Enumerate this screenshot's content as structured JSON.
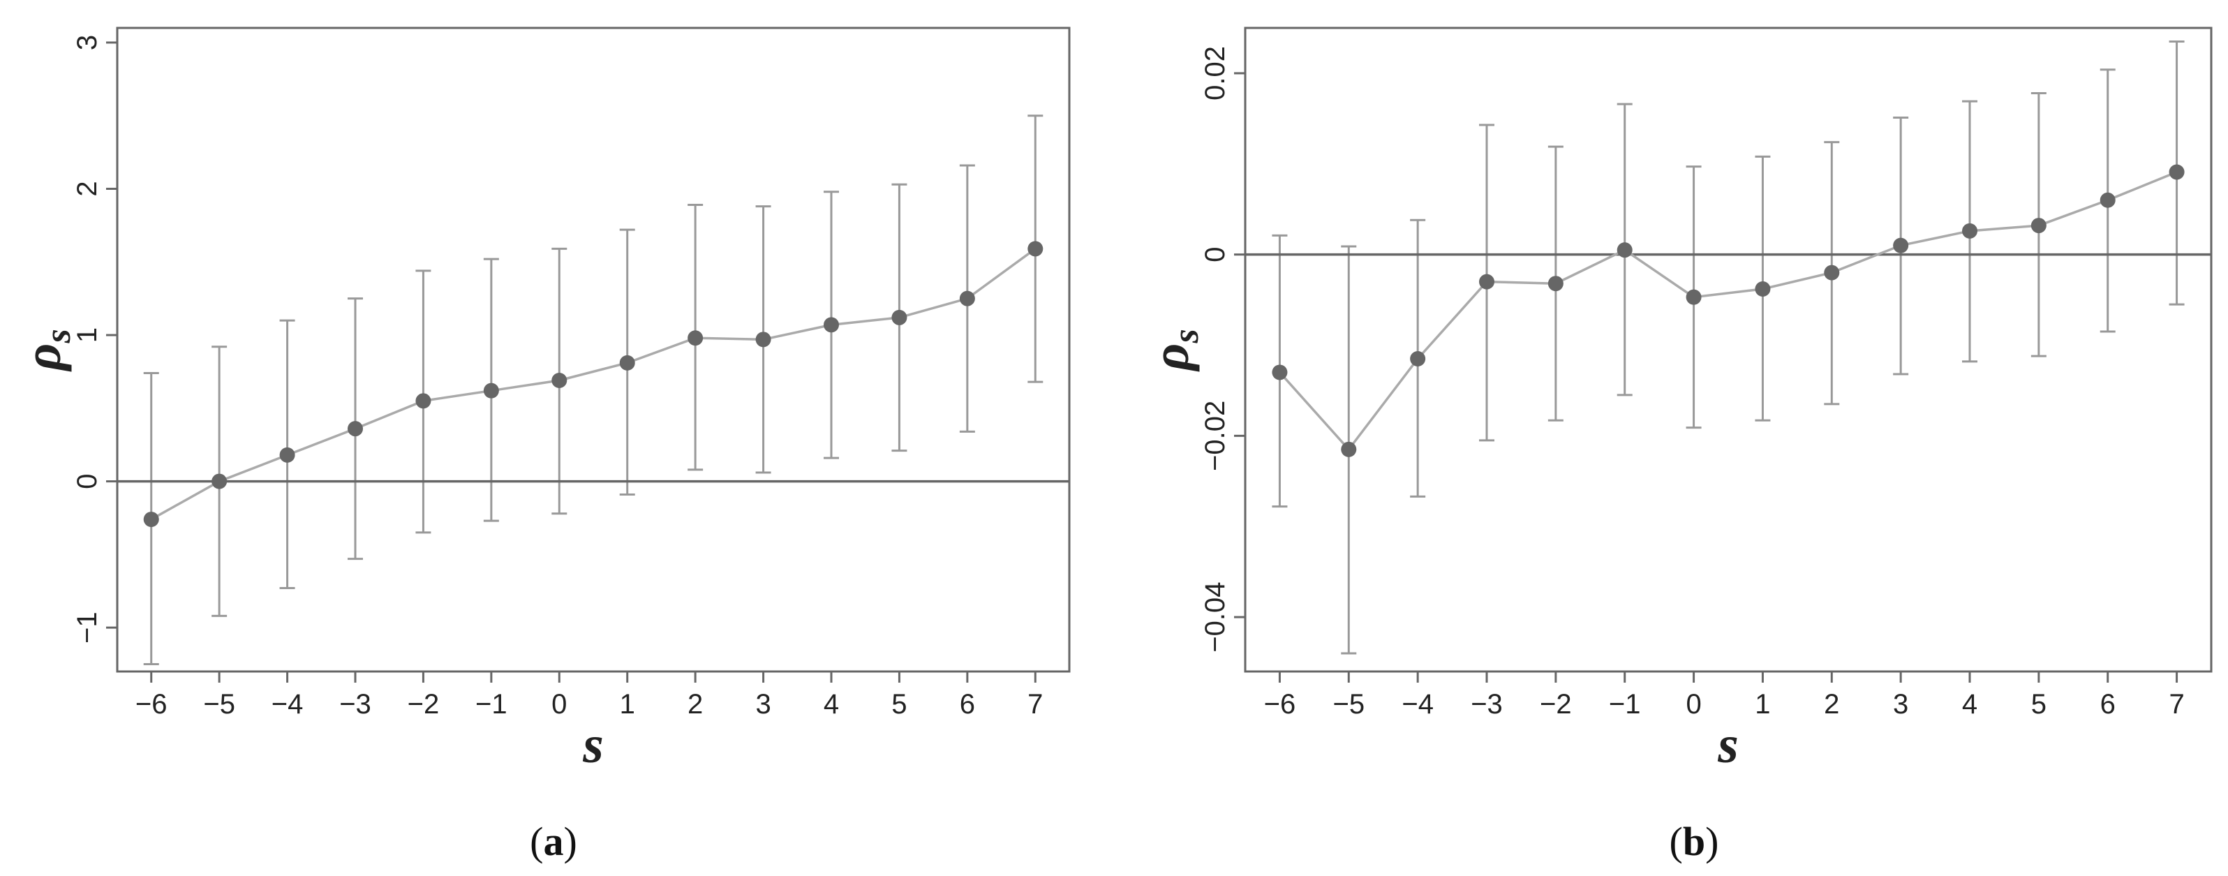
{
  "chart_data": [
    {
      "type": "scatter",
      "panel_label": "a",
      "xlabel": "s",
      "ylabel": "ρ",
      "ylabel_sub": "s",
      "xlim": [
        -6.5,
        7.5
      ],
      "ylim": [
        -1.3,
        3.1
      ],
      "x_ticks": [
        -6,
        -5,
        -4,
        -3,
        -2,
        -1,
        0,
        1,
        2,
        3,
        4,
        5,
        6,
        7
      ],
      "x_tick_labels": [
        "−6",
        "−5",
        "−4",
        "−3",
        "−2",
        "−1",
        "0",
        "1",
        "2",
        "3",
        "4",
        "5",
        "6",
        "7"
      ],
      "y_ticks": [
        -1,
        0,
        1,
        2,
        3
      ],
      "y_tick_labels": [
        "−1",
        "0",
        "1",
        "2",
        "3"
      ],
      "reference_line": 0,
      "grid": false,
      "x": [
        -6,
        -5,
        -4,
        -3,
        -2,
        -1,
        0,
        1,
        2,
        3,
        4,
        5,
        6,
        7
      ],
      "y": [
        -0.26,
        0.0,
        0.18,
        0.36,
        0.55,
        0.62,
        0.69,
        0.81,
        0.98,
        0.97,
        1.07,
        1.12,
        1.25,
        1.59
      ],
      "ci_low": [
        -1.25,
        -0.92,
        -0.73,
        -0.53,
        -0.35,
        -0.27,
        -0.22,
        -0.09,
        0.08,
        0.06,
        0.16,
        0.21,
        0.34,
        0.68
      ],
      "ci_high": [
        0.74,
        0.92,
        1.1,
        1.25,
        1.44,
        1.52,
        1.59,
        1.72,
        1.89,
        1.88,
        1.98,
        2.03,
        2.16,
        2.5
      ],
      "colors": {
        "line": "#aaaaaa",
        "marker": "#666666",
        "errorbar": "#999999",
        "reference": "#666666",
        "frame": "#666666"
      }
    },
    {
      "type": "scatter",
      "panel_label": "b",
      "xlabel": "s",
      "ylabel": "ρ",
      "ylabel_sub": "s",
      "xlim": [
        -6.5,
        7.5
      ],
      "ylim": [
        -0.046,
        0.025
      ],
      "x_ticks": [
        -6,
        -5,
        -4,
        -3,
        -2,
        -1,
        0,
        1,
        2,
        3,
        4,
        5,
        6,
        7
      ],
      "x_tick_labels": [
        "−6",
        "−5",
        "−4",
        "−3",
        "−2",
        "−1",
        "0",
        "1",
        "2",
        "3",
        "4",
        "5",
        "6",
        "7"
      ],
      "y_ticks": [
        -0.04,
        -0.02,
        0,
        0.02
      ],
      "y_tick_labels": [
        "−0.04",
        "−0.02",
        "0",
        "0.02"
      ],
      "reference_line": 0,
      "grid": false,
      "x": [
        -6,
        -5,
        -4,
        -3,
        -2,
        -1,
        0,
        1,
        2,
        3,
        4,
        5,
        6,
        7
      ],
      "y": [
        -0.013,
        -0.0215,
        -0.0115,
        -0.003,
        -0.0032,
        0.0005,
        -0.0047,
        -0.0038,
        -0.002,
        0.001,
        0.0026,
        0.0032,
        0.006,
        0.0091
      ],
      "ci_low": [
        -0.0278,
        -0.044,
        -0.0267,
        -0.0205,
        -0.0183,
        -0.0155,
        -0.0191,
        -0.0183,
        -0.0165,
        -0.0132,
        -0.0118,
        -0.0112,
        -0.0085,
        -0.0055
      ],
      "ci_high": [
        0.0021,
        0.0009,
        0.0038,
        0.0143,
        0.0119,
        0.0166,
        0.0097,
        0.0108,
        0.0124,
        0.0151,
        0.0169,
        0.0178,
        0.0204,
        0.0235
      ],
      "colors": {
        "line": "#aaaaaa",
        "marker": "#666666",
        "errorbar": "#999999",
        "reference": "#666666",
        "frame": "#666666"
      }
    }
  ]
}
